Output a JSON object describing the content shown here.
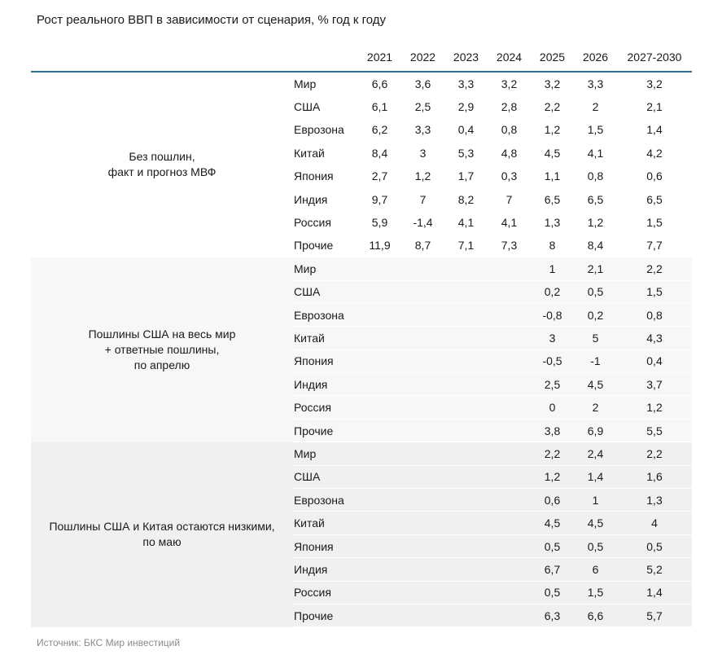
{
  "title": "Рост реального ВВП в зависимости от сценария, % год к году",
  "source": "Источник: БКС Мир инвестиций",
  "colors": {
    "header_rule": "#2e7093",
    "group2_bg": "#f7f7f7",
    "group3_bg": "#f0f0f0",
    "text": "#1a1a1a",
    "source_text": "#8a8a8a"
  },
  "chart_data": {
    "type": "table",
    "title": "Рост реального ВВП в зависимости от сценария, % год к году",
    "columns": [
      "2021",
      "2022",
      "2023",
      "2024",
      "2025",
      "2026",
      "2027-2030"
    ],
    "row_header": "регион",
    "groups": [
      {
        "label": "Без пошлин, факт и прогноз МВФ",
        "label_lines": [
          "Без пошлин,",
          "факт и прогноз МВФ"
        ],
        "rows": [
          {
            "region": "Мир",
            "values": [
              "6,6",
              "3,6",
              "3,3",
              "3,2",
              "3,2",
              "3,3",
              "3,2"
            ]
          },
          {
            "region": "США",
            "values": [
              "6,1",
              "2,5",
              "2,9",
              "2,8",
              "2,2",
              "2",
              "2,1"
            ]
          },
          {
            "region": "Еврозона",
            "values": [
              "6,2",
              "3,3",
              "0,4",
              "0,8",
              "1,2",
              "1,5",
              "1,4"
            ]
          },
          {
            "region": "Китай",
            "values": [
              "8,4",
              "3",
              "5,3",
              "4,8",
              "4,5",
              "4,1",
              "4,2"
            ]
          },
          {
            "region": "Япония",
            "values": [
              "2,7",
              "1,2",
              "1,7",
              "0,3",
              "1,1",
              "0,8",
              "0,6"
            ]
          },
          {
            "region": "Индия",
            "values": [
              "9,7",
              "7",
              "8,2",
              "7",
              "6,5",
              "6,5",
              "6,5"
            ]
          },
          {
            "region": "Россия",
            "values": [
              "5,9",
              "-1,4",
              "4,1",
              "4,1",
              "1,3",
              "1,2",
              "1,5"
            ]
          },
          {
            "region": "Прочие",
            "values": [
              "11,9",
              "8,7",
              "7,1",
              "7,3",
              "8",
              "8,4",
              "7,7"
            ]
          }
        ]
      },
      {
        "label": "Пошлины США на весь мир + ответные пошлины, по апрелю",
        "label_lines": [
          "Пошлины США на весь мир",
          "+ ответные пошлины,",
          "по апрелю"
        ],
        "rows": [
          {
            "region": "Мир",
            "values": [
              "",
              "",
              "",
              "",
              "1",
              "2,1",
              "2,2"
            ]
          },
          {
            "region": "США",
            "values": [
              "",
              "",
              "",
              "",
              "0,2",
              "0,5",
              "1,5"
            ]
          },
          {
            "region": "Еврозона",
            "values": [
              "",
              "",
              "",
              "",
              "-0,8",
              "0,2",
              "0,8"
            ]
          },
          {
            "region": "Китай",
            "values": [
              "",
              "",
              "",
              "",
              "3",
              "5",
              "4,3"
            ]
          },
          {
            "region": "Япония",
            "values": [
              "",
              "",
              "",
              "",
              "-0,5",
              "-1",
              "0,4"
            ]
          },
          {
            "region": "Индия",
            "values": [
              "",
              "",
              "",
              "",
              "2,5",
              "4,5",
              "3,7"
            ]
          },
          {
            "region": "Россия",
            "values": [
              "",
              "",
              "",
              "",
              "0",
              "2",
              "1,2"
            ]
          },
          {
            "region": "Прочие",
            "values": [
              "",
              "",
              "",
              "",
              "3,8",
              "6,9",
              "5,5"
            ]
          }
        ]
      },
      {
        "label": "Пошлины США и Китая остаются низкими, по маю",
        "label_lines": [
          "Пошлины США и Китая остаются низкими,",
          "по маю"
        ],
        "rows": [
          {
            "region": "Мир",
            "values": [
              "",
              "",
              "",
              "",
              "2,2",
              "2,4",
              "2,2"
            ]
          },
          {
            "region": "США",
            "values": [
              "",
              "",
              "",
              "",
              "1,2",
              "1,4",
              "1,6"
            ]
          },
          {
            "region": "Еврозона",
            "values": [
              "",
              "",
              "",
              "",
              "0,6",
              "1",
              "1,3"
            ]
          },
          {
            "region": "Китай",
            "values": [
              "",
              "",
              "",
              "",
              "4,5",
              "4,5",
              "4"
            ]
          },
          {
            "region": "Япония",
            "values": [
              "",
              "",
              "",
              "",
              "0,5",
              "0,5",
              "0,5"
            ]
          },
          {
            "region": "Индия",
            "values": [
              "",
              "",
              "",
              "",
              "6,7",
              "6",
              "5,2"
            ]
          },
          {
            "region": "Россия",
            "values": [
              "",
              "",
              "",
              "",
              "0,5",
              "1,5",
              "1,4"
            ]
          },
          {
            "region": "Прочие",
            "values": [
              "",
              "",
              "",
              "",
              "6,3",
              "6,6",
              "5,7"
            ]
          }
        ]
      }
    ]
  }
}
